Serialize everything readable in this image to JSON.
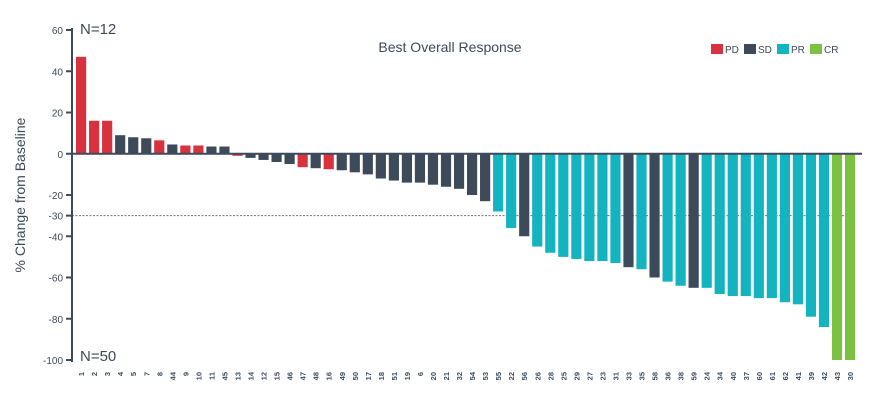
{
  "chart_data": {
    "type": "bar",
    "title": "Best Overall Response",
    "ylabel": "% Change from Baseline",
    "xlabel": "",
    "ylim": [
      -100,
      60
    ],
    "yticks": [
      60,
      40,
      20,
      0,
      -20,
      -30,
      -40,
      -60,
      -80,
      -100
    ],
    "reference_line": -30,
    "annotations": {
      "top_left": "N=12",
      "bottom_left": "N=50"
    },
    "legend": {
      "placement": "top-right",
      "items": [
        {
          "key": "PD",
          "label": "PD",
          "color": "#d8323f"
        },
        {
          "key": "SD",
          "label": "SD",
          "color": "#3d4a5a"
        },
        {
          "key": "PR",
          "label": "PR",
          "color": "#13b3bf"
        },
        {
          "key": "CR",
          "label": "CR",
          "color": "#7cc142"
        }
      ]
    },
    "colors": {
      "axis": "#3d4a5a",
      "refline": "#6b7480"
    },
    "categories": [
      "1",
      "2",
      "3",
      "4",
      "5",
      "7",
      "8",
      "44",
      "9",
      "10",
      "11",
      "45",
      "13",
      "14",
      "12",
      "15",
      "46",
      "47",
      "48",
      "16",
      "49",
      "50",
      "17",
      "18",
      "51",
      "19",
      "6",
      "20",
      "21",
      "32",
      "54",
      "53",
      "55",
      "22",
      "56",
      "26",
      "28",
      "25",
      "29",
      "27",
      "23",
      "31",
      "33",
      "35",
      "58",
      "36",
      "38",
      "59",
      "24",
      "34",
      "40",
      "37",
      "60",
      "61",
      "62",
      "41",
      "39",
      "42",
      "43",
      "30"
    ],
    "values": [
      47,
      16,
      16,
      9,
      8,
      7.5,
      6.5,
      4.5,
      4,
      4,
      3.5,
      3.5,
      -1,
      -2,
      -3,
      -4,
      -5,
      -6.5,
      -7,
      -7.5,
      -8,
      -9,
      -10,
      -12,
      -13,
      -14,
      -14,
      -15,
      -16,
      -17,
      -20,
      -23,
      -28,
      -36,
      -40,
      -45,
      -48,
      -50,
      -51,
      -52,
      -52,
      -53,
      -55,
      -56,
      -60,
      -62,
      -64,
      -65,
      -65,
      -68,
      -69,
      -69,
      -70,
      -70,
      -72,
      -73,
      -79,
      -84,
      -100,
      -100
    ],
    "response": [
      "PD",
      "PD",
      "PD",
      "SD",
      "SD",
      "SD",
      "PD",
      "SD",
      "PD",
      "PD",
      "SD",
      "SD",
      "PD",
      "SD",
      "SD",
      "SD",
      "SD",
      "PD",
      "SD",
      "PD",
      "SD",
      "SD",
      "SD",
      "SD",
      "SD",
      "SD",
      "SD",
      "SD",
      "SD",
      "SD",
      "SD",
      "SD",
      "PR",
      "PR",
      "SD",
      "PR",
      "PR",
      "PR",
      "PR",
      "PR",
      "PR",
      "PR",
      "SD",
      "PR",
      "SD",
      "PR",
      "PR",
      "SD",
      "PR",
      "PR",
      "PR",
      "PR",
      "PR",
      "PR",
      "PR",
      "PR",
      "PR",
      "PR",
      "CR",
      "CR"
    ]
  }
}
